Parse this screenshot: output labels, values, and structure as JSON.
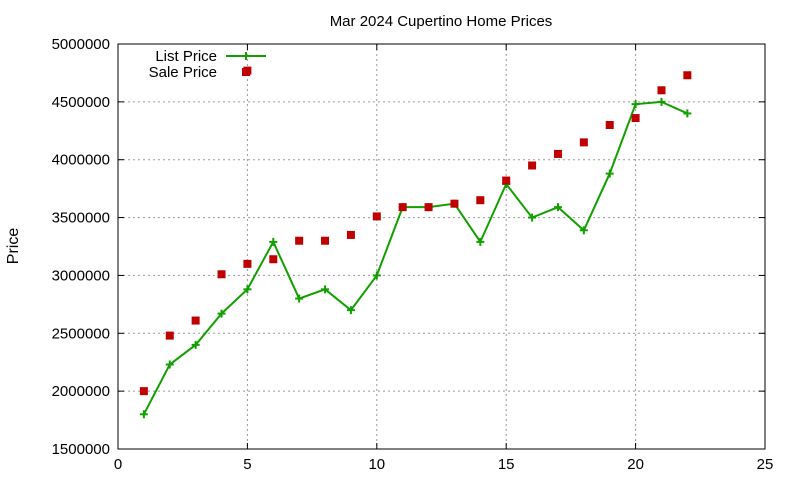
{
  "chart_data": {
    "type": "line",
    "title": "Mar 2024 Cupertino Home Prices",
    "xlabel": "",
    "ylabel": "Price",
    "xlim": [
      0,
      25
    ],
    "ylim": [
      1500000,
      5000000
    ],
    "xticks": [
      0,
      5,
      10,
      15,
      20,
      25
    ],
    "yticks": [
      1500000,
      2000000,
      2500000,
      3000000,
      3500000,
      4000000,
      4500000,
      5000000
    ],
    "grid": true,
    "legend_position": "top-left",
    "series": [
      {
        "name": "List Price",
        "style": "line+cross",
        "color": "#11a000",
        "x": [
          1,
          2,
          3,
          4,
          5,
          6,
          7,
          8,
          9,
          10,
          11,
          12,
          13,
          14,
          15,
          16,
          17,
          18,
          19,
          20,
          21,
          22
        ],
        "y": [
          1800000,
          2230000,
          2400000,
          2670000,
          2880000,
          3290000,
          2800000,
          2880000,
          2700000,
          3000000,
          3590000,
          3590000,
          3620000,
          3290000,
          3790000,
          3500000,
          3590000,
          3390000,
          3880000,
          4480000,
          4500000,
          4400000
        ]
      },
      {
        "name": "Sale Price",
        "style": "square",
        "color": "#c00000",
        "x": [
          1,
          2,
          3,
          4,
          5,
          6,
          7,
          8,
          9,
          10,
          11,
          12,
          13,
          14,
          15,
          16,
          17,
          18,
          19,
          20,
          21,
          22
        ],
        "y": [
          2000000,
          2480000,
          2610000,
          3010000,
          3100000,
          3140000,
          3300000,
          3300000,
          3350000,
          3510000,
          3590000,
          3590000,
          3620000,
          3650000,
          3820000,
          3950000,
          4050000,
          4150000,
          4300000,
          4360000,
          4600000,
          4730000
        ]
      },
      {
        "name": "",
        "style": "square",
        "color": "#c00000",
        "x": [
          5
        ],
        "y": [
          4770000
        ]
      }
    ]
  }
}
